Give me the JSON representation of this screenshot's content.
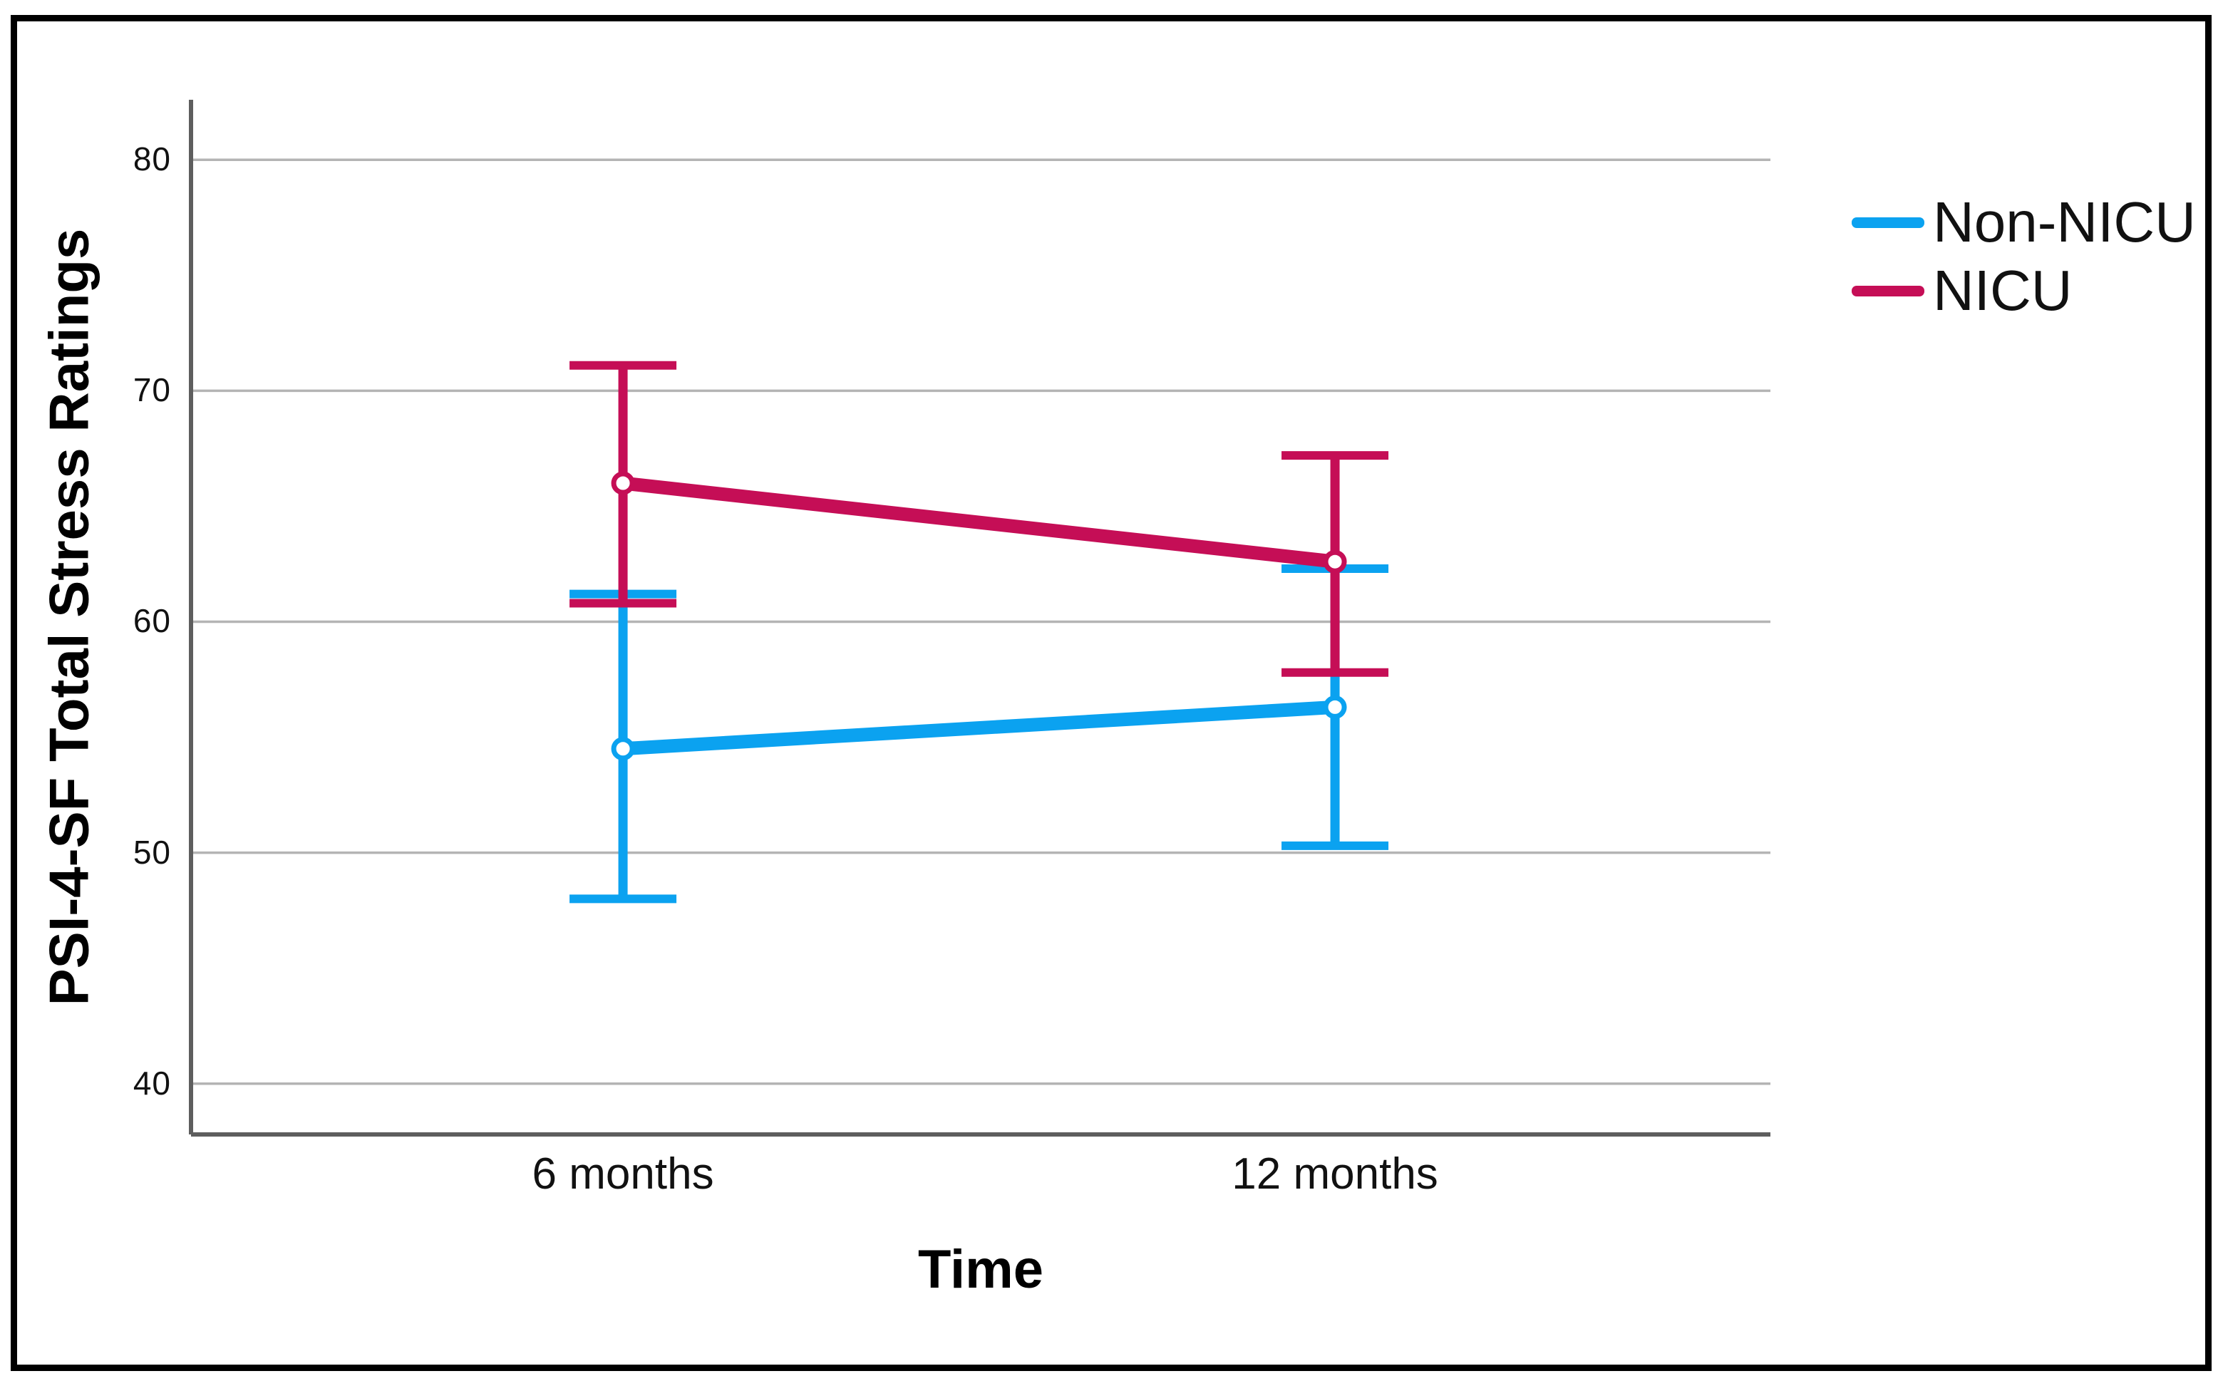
{
  "chart_data": {
    "type": "line",
    "title": "",
    "xlabel": "Time",
    "ylabel": "PSI-4-SF Total Stress Ratings",
    "categories": [
      "6 months",
      "12 months"
    ],
    "yticks": [
      80,
      70,
      60,
      50,
      40
    ],
    "ylim": [
      37.8,
      82.6
    ],
    "grid": "horizontal-only",
    "grid_color": "#B4B4B4",
    "axis_color": "#5E5E5E",
    "frame_color": "#000000",
    "background_color": "#FFFFFF",
    "legend_position": "top-right",
    "marker": "open-circle",
    "error_bars": "vertical-with-caps",
    "series": [
      {
        "name": "Non-NICU",
        "color": "#0BA2F0",
        "means": [
          54.5,
          56.3
        ],
        "ci_low": [
          48.0,
          50.3
        ],
        "ci_high": [
          61.2,
          62.3
        ]
      },
      {
        "name": "NICU",
        "color": "#C50E56",
        "means": [
          66.0,
          62.6
        ],
        "ci_low": [
          60.8,
          57.8
        ],
        "ci_high": [
          71.1,
          67.2
        ]
      }
    ]
  }
}
